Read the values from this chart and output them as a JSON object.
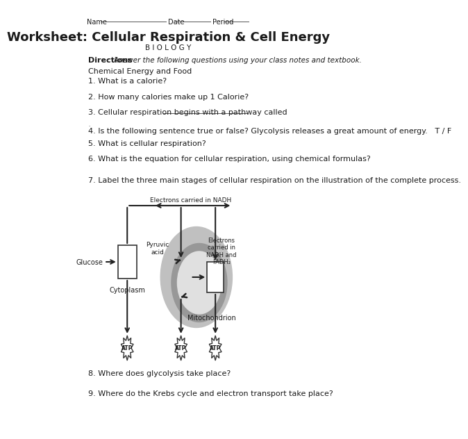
{
  "title": "Worksheet: Cellular Respiration & Cell Energy",
  "subtitle": "B I O L O G Y",
  "section": "Chemical Energy and Food",
  "questions": [
    "1. What is a calorie?",
    "2. How many calories make up 1 Calorie?",
    "3. Cellular respiration begins with a pathway called __________________________",
    "4. Is the following sentence true or false? Glycolysis releases a great amount of energy.   T / F",
    "5. What is cellular respiration?",
    "6. What is the equation for cellular respiration, using chemical formulas?",
    "7. Label the three main stages of cellular respiration on the illustration of the complete process.",
    "8. Where does glycolysis take place?",
    "9. Where do the Krebs cycle and electron transport take place?"
  ],
  "bg_color": "#ffffff",
  "text_color": "#1a1a1a",
  "fadh2": "FADH₂"
}
